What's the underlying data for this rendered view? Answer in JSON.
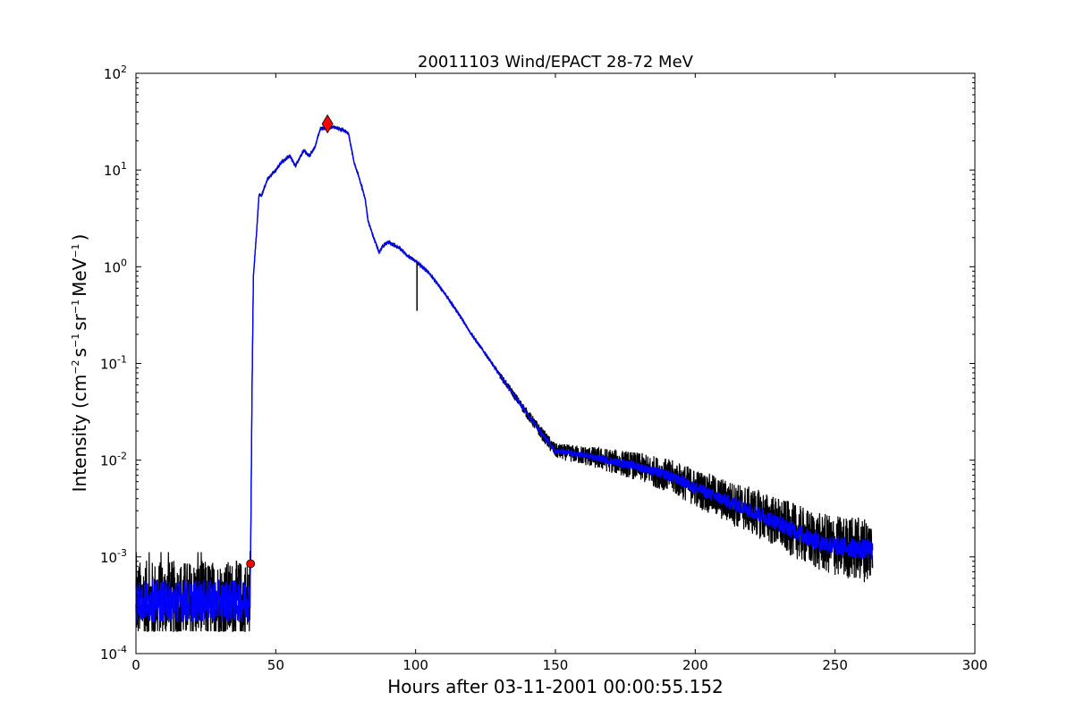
{
  "chart_data": {
    "type": "line",
    "title": "20011103 Wind/EPACT 28-72 MeV",
    "xlabel": "Hours after 03-11-2001 00:00:55.152",
    "ylabel": {
      "prefix": "Intensity (cm",
      "exp1": "−2",
      "s": "s",
      "exp2": "−1",
      "sr": "sr",
      "exp3": "−1",
      "mev": "MeV",
      "exp4": "−1",
      "suffix": ")"
    },
    "xlim": [
      0,
      300
    ],
    "ylim": [
      0.0001,
      100
    ],
    "yscale": "log",
    "grid": false,
    "legend": "none",
    "x_ticks": [
      {
        "value": 0,
        "label": "0"
      },
      {
        "value": 50,
        "label": "50"
      },
      {
        "value": 100,
        "label": "100"
      },
      {
        "value": 150,
        "label": "150"
      },
      {
        "value": 200,
        "label": "200"
      },
      {
        "value": 250,
        "label": "250"
      },
      {
        "value": 300,
        "label": "300"
      }
    ],
    "y_ticks": [
      {
        "value": 0.0001,
        "base": "10",
        "exp": "-4"
      },
      {
        "value": 0.001,
        "base": "10",
        "exp": "-3"
      },
      {
        "value": 0.01,
        "base": "10",
        "exp": "-2"
      },
      {
        "value": 0.1,
        "base": "10",
        "exp": "-1"
      },
      {
        "value": 1,
        "base": "10",
        "exp": "0"
      },
      {
        "value": 10,
        "base": "10",
        "exp": "1"
      },
      {
        "value": 100,
        "base": "10",
        "exp": "2"
      }
    ],
    "series": [
      {
        "color": "#000000",
        "style": "raw data (noisy)",
        "x": [
          0,
          5,
          10,
          15,
          20,
          25,
          30,
          35,
          40,
          40.7,
          41,
          41.5,
          42,
          43,
          44,
          45,
          47,
          50,
          52,
          55,
          57,
          60,
          62,
          64,
          65,
          66,
          68,
          70,
          72,
          74,
          76,
          77,
          78,
          80,
          82,
          83,
          85,
          87,
          88,
          90,
          92,
          95,
          97,
          100,
          105,
          110,
          115,
          120,
          125,
          130,
          135,
          140,
          145,
          150,
          155,
          160,
          165,
          170,
          175,
          180,
          185,
          190,
          195,
          200,
          205,
          210,
          215,
          220,
          225,
          230,
          235,
          240,
          245,
          250,
          255,
          260,
          263.5
        ],
        "y": [
          0.00035,
          0.00035,
          0.00035,
          0.00035,
          0.00035,
          0.00035,
          0.00035,
          0.00035,
          0.00035,
          0.00035,
          0.001,
          0.05,
          0.8,
          2,
          5.5,
          5.5,
          8,
          10,
          12,
          14,
          11,
          16,
          14,
          17,
          22,
          27,
          27,
          28,
          27,
          26,
          24,
          17,
          12,
          8,
          5,
          3,
          2,
          1.4,
          1.6,
          1.8,
          1.7,
          1.5,
          1.3,
          1.15,
          0.85,
          0.55,
          0.34,
          0.2,
          0.125,
          0.077,
          0.048,
          0.03,
          0.019,
          0.0125,
          0.0118,
          0.0112,
          0.0105,
          0.0098,
          0.0092,
          0.0085,
          0.0077,
          0.007,
          0.0061,
          0.0052,
          0.0045,
          0.0039,
          0.0034,
          0.003,
          0.0026,
          0.0022,
          0.0019,
          0.0016,
          0.0014,
          0.0013,
          0.00125,
          0.0012,
          0.0012
        ]
      },
      {
        "color": "#0000ff",
        "style": "smoothed",
        "x": [
          0,
          5,
          10,
          15,
          20,
          25,
          30,
          35,
          40,
          40.7,
          41,
          41.5,
          42,
          43,
          44,
          45,
          47,
          50,
          52,
          55,
          57,
          60,
          62,
          64,
          65,
          66,
          68,
          70,
          72,
          74,
          76,
          77,
          78,
          80,
          82,
          83,
          85,
          87,
          88,
          90,
          92,
          95,
          97,
          100,
          105,
          110,
          115,
          120,
          125,
          130,
          135,
          140,
          145,
          150,
          155,
          160,
          165,
          170,
          175,
          180,
          185,
          190,
          195,
          200,
          205,
          210,
          215,
          220,
          225,
          230,
          235,
          240,
          245,
          250,
          255,
          260,
          263.5
        ],
        "y": [
          0.00035,
          0.00035,
          0.00035,
          0.00035,
          0.00035,
          0.00035,
          0.00035,
          0.00035,
          0.00035,
          0.00035,
          0.001,
          0.05,
          0.8,
          2,
          5.5,
          5.5,
          8,
          10,
          12,
          14,
          11,
          16,
          14,
          17,
          22,
          27,
          27,
          28,
          27,
          26,
          24,
          17,
          12,
          8,
          5,
          3,
          2,
          1.4,
          1.6,
          1.8,
          1.7,
          1.5,
          1.3,
          1.15,
          0.85,
          0.55,
          0.34,
          0.2,
          0.125,
          0.077,
          0.048,
          0.03,
          0.019,
          0.0125,
          0.0118,
          0.0112,
          0.0105,
          0.0098,
          0.0092,
          0.0085,
          0.0077,
          0.007,
          0.0061,
          0.0052,
          0.0045,
          0.0039,
          0.0034,
          0.003,
          0.0026,
          0.0022,
          0.0019,
          0.0016,
          0.0014,
          0.0013,
          0.00125,
          0.0012,
          0.0012
        ]
      }
    ],
    "spike": {
      "x": 100.5,
      "y_top": 1.1,
      "y_bottom": 0.35,
      "color": "#000000"
    },
    "markers": [
      {
        "shape": "circle",
        "color": "#ff0000",
        "x": 41,
        "y": 0.00085
      },
      {
        "shape": "diamond",
        "color": "#ff0000",
        "x": 68.5,
        "y": 30
      }
    ]
  }
}
